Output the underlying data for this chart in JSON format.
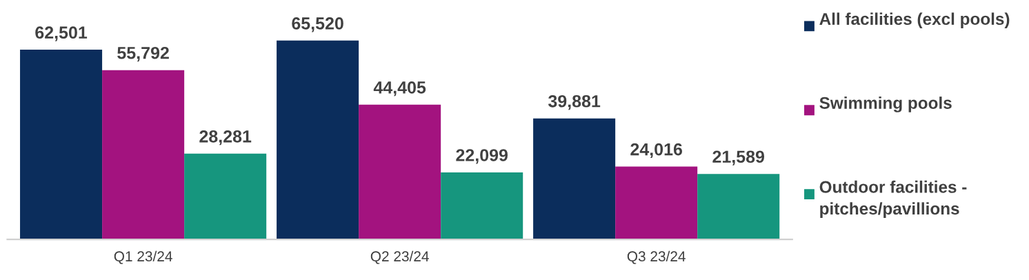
{
  "chart_data": {
    "type": "bar",
    "categories": [
      "Q1 23/24",
      "Q2 23/24",
      "Q3 23/24"
    ],
    "series": [
      {
        "name": "All facilities (excl pools)",
        "color": "#0b2d5c",
        "values": [
          62501,
          65520,
          39881
        ],
        "value_labels": [
          "62,501",
          "65,520",
          "39,881"
        ]
      },
      {
        "name": "Swimming pools",
        "color": "#a3137f",
        "values": [
          55792,
          44405,
          24016
        ],
        "value_labels": [
          "55,792",
          "44,405",
          "24,016"
        ]
      },
      {
        "name": "Outdoor facilities - pitches/pavillions",
        "color": "#16967e",
        "values": [
          28281,
          22099,
          21589
        ],
        "value_labels": [
          "28,281",
          "22,099",
          "21,589"
        ]
      }
    ],
    "legend": "right",
    "grid": false
  }
}
